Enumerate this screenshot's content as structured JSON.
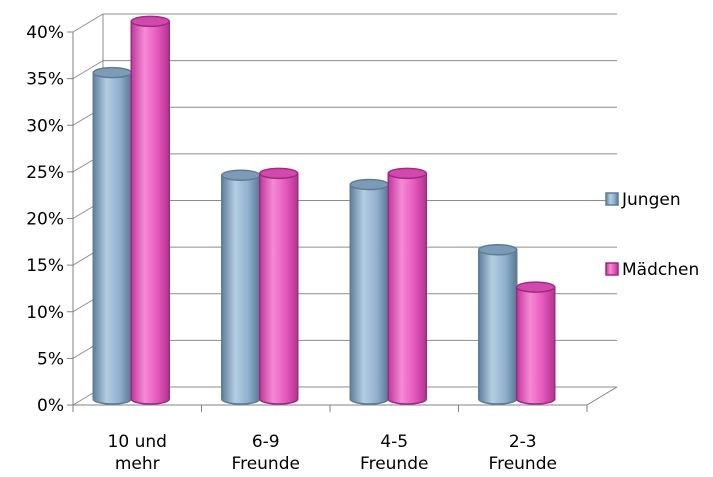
{
  "chart_data": {
    "type": "bar",
    "title": "",
    "xlabel": "",
    "ylabel": "",
    "categories": [
      [
        "10 und",
        "mehr"
      ],
      [
        "6-9",
        "Freunde"
      ],
      [
        "4-5",
        "Freunde"
      ],
      [
        "2-3",
        "Freunde"
      ]
    ],
    "series": [
      {
        "name": "Jungen",
        "values": [
          35,
          24,
          23,
          16
        ],
        "color": "#8fb3d1"
      },
      {
        "name": "Mädchen",
        "values": [
          40.5,
          24.2,
          24.2,
          12
        ],
        "color": "#e855b8"
      }
    ],
    "ylim": [
      0,
      40
    ],
    "yticks": [
      "0%",
      "5%",
      "10%",
      "15%",
      "20%",
      "25%",
      "30%",
      "35%",
      "40%"
    ],
    "grid": true,
    "legend": "right"
  }
}
